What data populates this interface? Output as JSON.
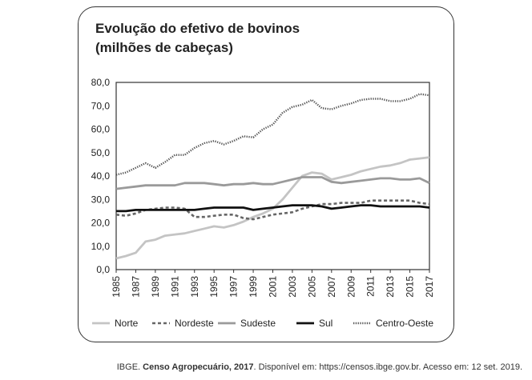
{
  "chart_data": {
    "type": "line",
    "title": "Evolução do efetivo de bovinos",
    "subtitle": "(milhões de cabeças)",
    "xlabel": "",
    "ylabel": "",
    "ylim": [
      0,
      80
    ],
    "yticks": [
      "0,0",
      "10,0",
      "20,0",
      "30,0",
      "40,0",
      "50,0",
      "60,0",
      "70,0",
      "80,0"
    ],
    "xticks": [
      "1985",
      "1987",
      "1989",
      "1991",
      "1993",
      "1995",
      "1997",
      "1999",
      "2001",
      "2003",
      "2005",
      "2007",
      "2009",
      "2011",
      "2013",
      "2015",
      "2017"
    ],
    "x": [
      1985,
      1986,
      1987,
      1988,
      1989,
      1990,
      1991,
      1992,
      1993,
      1994,
      1995,
      1996,
      1997,
      1998,
      1999,
      2000,
      2001,
      2002,
      2003,
      2004,
      2005,
      2006,
      2007,
      2008,
      2009,
      2010,
      2011,
      2012,
      2013,
      2014,
      2015,
      2016,
      2017
    ],
    "legend_position": "bottom",
    "series": [
      {
        "name": "Norte",
        "color": "#c4c4c4",
        "style": "solid",
        "values": [
          4.8,
          5.8,
          7.2,
          12.0,
          12.8,
          14.5,
          15.0,
          15.5,
          16.5,
          17.5,
          18.5,
          18.0,
          19.0,
          20.5,
          22.5,
          24.0,
          26.0,
          30.0,
          35.0,
          40.0,
          41.5,
          41.0,
          38.5,
          39.5,
          40.5,
          42.0,
          43.0,
          44.0,
          44.5,
          45.5,
          47.0,
          47.5,
          48.0
        ]
      },
      {
        "name": "Nordeste",
        "color": "#666666",
        "style": "dashed",
        "values": [
          23.5,
          23.0,
          24.0,
          25.5,
          26.0,
          26.5,
          26.5,
          26.0,
          22.5,
          22.5,
          23.0,
          23.5,
          23.5,
          22.0,
          21.5,
          22.5,
          23.5,
          24.0,
          24.5,
          26.0,
          27.0,
          28.0,
          28.0,
          28.5,
          28.5,
          28.5,
          29.5,
          29.5,
          29.5,
          29.5,
          29.5,
          28.5,
          28.0
        ]
      },
      {
        "name": "Sudeste",
        "color": "#9a9a9a",
        "style": "solid",
        "values": [
          34.5,
          35.0,
          35.5,
          36.0,
          36.0,
          36.0,
          36.0,
          37.0,
          37.0,
          37.0,
          36.5,
          36.0,
          36.5,
          36.5,
          37.0,
          36.5,
          36.5,
          37.5,
          38.5,
          39.5,
          39.5,
          39.5,
          37.5,
          37.0,
          37.5,
          38.0,
          38.5,
          39.0,
          39.0,
          38.5,
          38.5,
          39.0,
          37.0
        ]
      },
      {
        "name": "Sul",
        "color": "#111111",
        "style": "solid",
        "values": [
          25.0,
          25.0,
          25.5,
          25.5,
          25.5,
          25.5,
          25.5,
          25.5,
          25.5,
          26.0,
          26.5,
          26.5,
          26.5,
          26.5,
          25.5,
          26.0,
          26.5,
          27.0,
          27.5,
          27.5,
          27.5,
          27.0,
          26.0,
          26.5,
          27.0,
          27.5,
          27.5,
          27.0,
          27.0,
          27.0,
          27.0,
          27.0,
          26.5
        ]
      },
      {
        "name": "Centro-Oeste",
        "color": "#555555",
        "style": "dotted",
        "values": [
          40.5,
          41.5,
          43.5,
          45.5,
          43.5,
          46.0,
          49.0,
          49.0,
          52.0,
          54.0,
          55.0,
          53.5,
          55.0,
          57.0,
          56.5,
          60.0,
          62.0,
          67.0,
          69.5,
          70.5,
          72.5,
          69.0,
          68.5,
          70.0,
          71.0,
          72.5,
          73.0,
          73.0,
          72.0,
          72.0,
          73.0,
          75.0,
          74.5
        ]
      }
    ]
  },
  "source": {
    "prefix": "IBGE. ",
    "bold": "Censo Agropecuário, 2017",
    "suffix": ". Disponível em: https://censos.ibge.gov.br. Acesso em: 12 set. 2019."
  }
}
